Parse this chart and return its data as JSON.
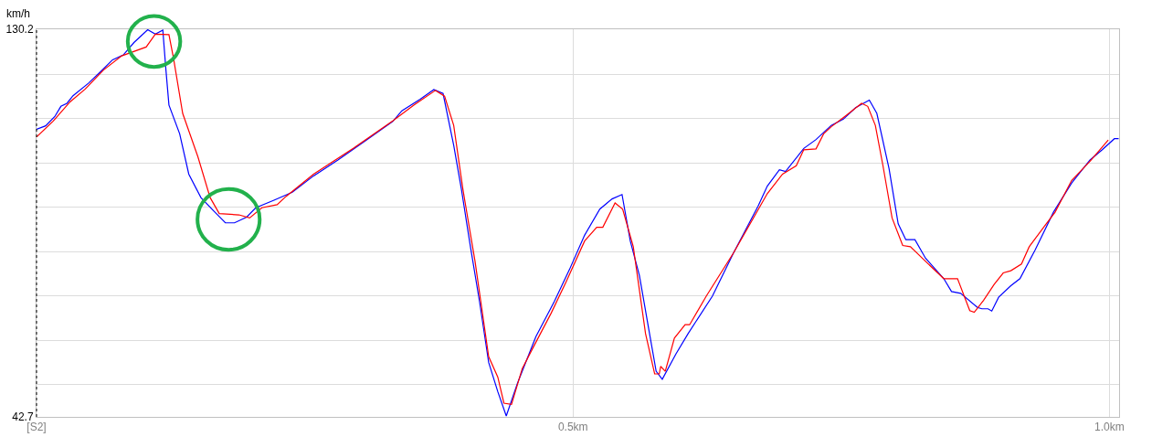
{
  "chart_data": {
    "type": "line",
    "ylabel": "km/h",
    "x": [
      0,
      0.0085,
      0.017,
      0.0227,
      0.0284,
      0.034,
      0.0483,
      0.0596,
      0.0709,
      0.0809,
      0.0908,
      0.1036,
      0.1107,
      0.1177,
      0.1206,
      0.1234,
      0.1334,
      0.1419,
      0.1532,
      0.1646,
      0.176,
      0.1845,
      0.1958,
      0.2043,
      0.2213,
      0.2384,
      0.2582,
      0.2809,
      0.3065,
      0.332,
      0.3405,
      0.3576,
      0.3703,
      0.3789,
      0.3888,
      0.3959,
      0.4044,
      0.4129,
      0.4214,
      0.4299,
      0.4378,
      0.4484,
      0.4654,
      0.4825,
      0.4966,
      0.5108,
      0.525,
      0.5364,
      0.5457,
      0.5534,
      0.5619,
      0.5704,
      0.5775,
      0.5832,
      0.5959,
      0.6073,
      0.63,
      0.6498,
      0.6726,
      0.6811,
      0.6924,
      0.6981,
      0.7151,
      0.7265,
      0.7407,
      0.752,
      0.7634,
      0.7762,
      0.7832,
      0.7946,
      0.8031,
      0.8102,
      0.8187,
      0.8286,
      0.8456,
      0.8528,
      0.8613,
      0.8769,
      0.8811,
      0.8868,
      0.8903,
      0.8967,
      0.9081,
      0.9166,
      0.9308,
      0.9478,
      0.9648,
      0.9819,
      0.9933,
      1.0046,
      1.0086
    ],
    "series": [
      {
        "color": "#0000ff",
        "values": [
          107.6,
          108.4,
          110.5,
          112.8,
          113.5,
          115.2,
          118.0,
          120.6,
          123.3,
          124.4,
          127.2,
          130.1,
          129.1,
          130.0,
          121.0,
          113.1,
          106.6,
          97.5,
          92.2,
          89.3,
          86.5,
          86.5,
          87.8,
          89.9,
          91.6,
          93.4,
          97.1,
          100.7,
          105.0,
          109.4,
          111.8,
          114.4,
          116.6,
          115.7,
          104.0,
          94.2,
          81.1,
          68.7,
          55.0,
          48.4,
          42.9,
          50.4,
          60.8,
          68.7,
          75.9,
          83.7,
          89.6,
          91.9,
          92.9,
          82.4,
          74.6,
          62.8,
          53.0,
          51.2,
          56.9,
          61.5,
          70.0,
          79.8,
          90.3,
          94.8,
          98.5,
          98.1,
          103.3,
          105.3,
          108.5,
          109.9,
          112.5,
          114.2,
          111.2,
          98.7,
          86.3,
          82.7,
          82.7,
          78.5,
          73.9,
          71.0,
          70.6,
          67.4,
          67.1,
          67.1,
          66.6,
          69.7,
          72.3,
          73.9,
          80.4,
          88.9,
          95.5,
          100.7,
          103.0,
          105.5,
          105.5
        ]
      },
      {
        "color": "#ff0000",
        "x": [
          0,
          0.0156,
          0.0312,
          0.0454,
          0.0624,
          0.0794,
          0.1022,
          0.1107,
          0.1234,
          0.1277,
          0.1362,
          0.1504,
          0.1618,
          0.1703,
          0.1887,
          0.1986,
          0.21,
          0.2242,
          0.2327,
          0.2582,
          0.2952,
          0.332,
          0.3519,
          0.3718,
          0.3803,
          0.3888,
          0.3973,
          0.4087,
          0.4214,
          0.4299,
          0.4356,
          0.4427,
          0.4527,
          0.4625,
          0.4796,
          0.4938,
          0.5108,
          0.5221,
          0.5278,
          0.5392,
          0.5463,
          0.5562,
          0.5676,
          0.5761,
          0.5804,
          0.5817,
          0.586,
          0.5945,
          0.6045,
          0.6087,
          0.6243,
          0.6498,
          0.6811,
          0.6953,
          0.7081,
          0.7151,
          0.7265,
          0.7336,
          0.7407,
          0.7549,
          0.769,
          0.7747,
          0.7818,
          0.7889,
          0.7974,
          0.8073,
          0.8145,
          0.8286,
          0.8456,
          0.8584,
          0.8698,
          0.874,
          0.8826,
          0.8925,
          0.901,
          0.9081,
          0.918,
          0.9252,
          0.9393,
          0.9493,
          0.9648,
          0.9819,
          0.9989
        ],
        "values": [
          105.9,
          109.5,
          113.8,
          116.7,
          121.0,
          124.2,
          126.2,
          129.1,
          129.0,
          123.6,
          111.2,
          101.4,
          92.2,
          88.6,
          88.3,
          87.6,
          89.9,
          90.6,
          92.5,
          97.5,
          103.3,
          109.5,
          113.1,
          116.4,
          115.1,
          108.5,
          94.2,
          77.8,
          56.3,
          51.7,
          45.8,
          45.5,
          53.6,
          58.2,
          66.1,
          73.3,
          82.4,
          85.5,
          85.5,
          91.0,
          89.6,
          81.1,
          61.5,
          52.4,
          52.4,
          54.1,
          53.0,
          60.5,
          63.5,
          63.5,
          70.0,
          79.8,
          93.1,
          97.5,
          99.4,
          103.0,
          103.2,
          106.6,
          108.2,
          110.8,
          113.5,
          112.8,
          108.5,
          99.4,
          87.6,
          81.4,
          81.1,
          77.8,
          73.9,
          73.9,
          66.7,
          66.3,
          69.0,
          72.6,
          75.2,
          75.7,
          77.2,
          81.1,
          85.7,
          88.9,
          96.1,
          100.4,
          105.2
        ]
      }
    ],
    "xlim": [
      0,
      1.009
    ],
    "xticks": [
      {
        "value": 0,
        "label": "[S2]"
      },
      {
        "value": 0.5,
        "label": "0.5km"
      },
      {
        "value": 1.0,
        "label": "1.0km"
      }
    ],
    "ylim": [
      42.7,
      130.2
    ],
    "yticks": [
      42.7,
      {
        "value": 50,
        "label": null
      },
      {
        "value": 60,
        "label": null
      },
      {
        "value": 70,
        "label": null
      },
      {
        "value": 80,
        "label": null
      },
      {
        "value": 90,
        "label": null
      },
      {
        "value": 100,
        "label": null
      },
      {
        "value": 110,
        "label": null
      },
      {
        "value": 120,
        "label": null
      },
      130.2
    ],
    "grid": true,
    "marker": "none",
    "line_style": "solid"
  }
}
